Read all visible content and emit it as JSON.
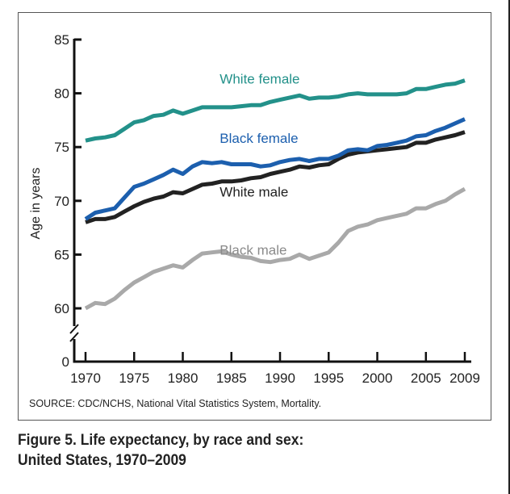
{
  "source_note": "SOURCE: CDC/NCHS, National Vital Statistics System, Mortality.",
  "caption": {
    "line1": "Figure 5. Life expectancy, by race and sex:",
    "line2": "United States, 1970–2009"
  },
  "chart_data": {
    "type": "line",
    "title": "Figure 5. Life expectancy, by race and sex: United States, 1970–2009",
    "xlabel": "",
    "ylabel": "Age in years",
    "xlim": [
      1970,
      2009
    ],
    "ylim": [
      0,
      85
    ],
    "y_axis_break": [
      0,
      60
    ],
    "grid": false,
    "legend": "inline labels",
    "x_ticks": [
      1970,
      1975,
      1980,
      1985,
      1990,
      1995,
      2000,
      2005,
      2009
    ],
    "y_ticks": [
      0,
      60,
      65,
      70,
      75,
      80,
      85
    ],
    "x": [
      1970,
      1971,
      1972,
      1973,
      1974,
      1975,
      1976,
      1977,
      1978,
      1979,
      1980,
      1981,
      1982,
      1983,
      1984,
      1985,
      1986,
      1987,
      1988,
      1989,
      1990,
      1991,
      1992,
      1993,
      1994,
      1995,
      1996,
      1997,
      1998,
      1999,
      2000,
      2001,
      2002,
      2003,
      2004,
      2005,
      2006,
      2007,
      2008,
      2009
    ],
    "series": [
      {
        "name": "White female",
        "color": "#23918a",
        "values": [
          75.6,
          75.8,
          75.9,
          76.1,
          76.7,
          77.3,
          77.5,
          77.9,
          78.0,
          78.4,
          78.1,
          78.4,
          78.7,
          78.7,
          78.7,
          78.7,
          78.8,
          78.9,
          78.9,
          79.2,
          79.4,
          79.6,
          79.8,
          79.5,
          79.6,
          79.6,
          79.7,
          79.9,
          80.0,
          79.9,
          79.9,
          79.9,
          79.9,
          80.0,
          80.4,
          80.4,
          80.6,
          80.8,
          80.9,
          81.2
        ]
      },
      {
        "name": "Black female",
        "color": "#1c5fae",
        "values": [
          68.3,
          68.9,
          69.1,
          69.3,
          70.3,
          71.3,
          71.6,
          72.0,
          72.4,
          72.9,
          72.5,
          73.2,
          73.6,
          73.5,
          73.6,
          73.4,
          73.4,
          73.4,
          73.2,
          73.3,
          73.6,
          73.8,
          73.9,
          73.7,
          73.9,
          73.9,
          74.2,
          74.7,
          74.8,
          74.7,
          75.1,
          75.2,
          75.4,
          75.6,
          76.0,
          76.1,
          76.5,
          76.8,
          77.2,
          77.6
        ]
      },
      {
        "name": "White male",
        "color": "#222222",
        "values": [
          68.0,
          68.3,
          68.3,
          68.5,
          69.0,
          69.5,
          69.9,
          70.2,
          70.4,
          70.8,
          70.7,
          71.1,
          71.5,
          71.6,
          71.8,
          71.8,
          71.9,
          72.1,
          72.2,
          72.5,
          72.7,
          72.9,
          73.2,
          73.1,
          73.3,
          73.4,
          73.9,
          74.3,
          74.5,
          74.6,
          74.7,
          74.8,
          74.9,
          75.0,
          75.4,
          75.4,
          75.7,
          75.9,
          76.1,
          76.4
        ]
      },
      {
        "name": "Black male",
        "color": "#a9a9a9",
        "values": [
          60.0,
          60.5,
          60.4,
          60.9,
          61.7,
          62.4,
          62.9,
          63.4,
          63.7,
          64.0,
          63.8,
          64.5,
          65.1,
          65.2,
          65.3,
          65.0,
          64.8,
          64.7,
          64.4,
          64.3,
          64.5,
          64.6,
          65.0,
          64.6,
          64.9,
          65.2,
          66.1,
          67.2,
          67.6,
          67.8,
          68.2,
          68.4,
          68.6,
          68.8,
          69.3,
          69.3,
          69.7,
          70.0,
          70.6,
          71.1
        ]
      }
    ],
    "labels": [
      {
        "text": "White female",
        "series": "White female",
        "at": [
          1983.8,
          80.9
        ]
      },
      {
        "text": "Black female",
        "series": "Black female",
        "at": [
          1983.8,
          75.4
        ]
      },
      {
        "text": "White male",
        "series": "White male",
        "at": [
          1983.8,
          70.4
        ]
      },
      {
        "text": "Black male",
        "series": "Black male",
        "at": [
          1983.8,
          65.0
        ]
      }
    ]
  }
}
